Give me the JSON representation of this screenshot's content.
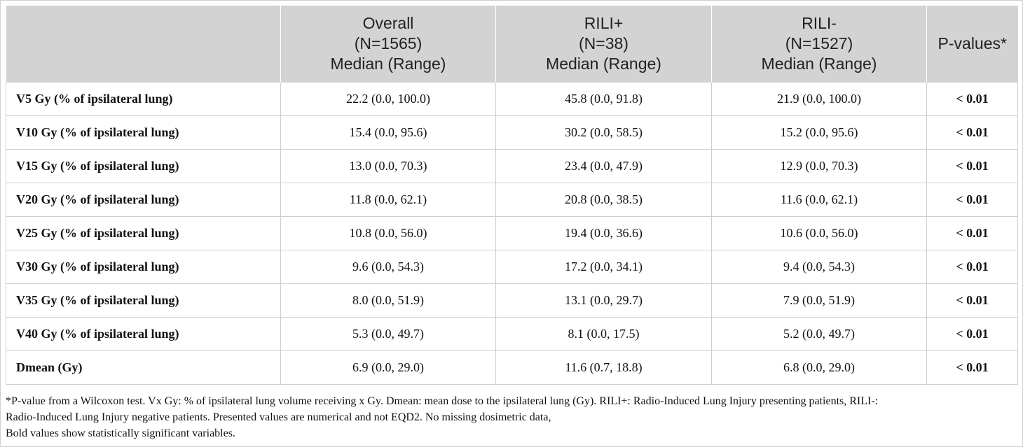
{
  "table": {
    "header": [
      [
        "Overall",
        "(N=1565)",
        "Median (Range)"
      ],
      [
        "RILI+",
        "(N=38)",
        "Median (Range)"
      ],
      [
        "RILI-",
        "(N=1527)",
        "Median (Range)"
      ],
      [
        "P-values*"
      ]
    ],
    "rows": [
      [
        "V5 Gy (% of ipsilateral lung)",
        "22.2 (0.0, 100.0)",
        "45.8 (0.0, 91.8)",
        "21.9 (0.0, 100.0)",
        "< 0.01"
      ],
      [
        "V10 Gy (% of ipsilateral lung)",
        "15.4 (0.0, 95.6)",
        "30.2 (0.0, 58.5)",
        "15.2 (0.0, 95.6)",
        "< 0.01"
      ],
      [
        "V15 Gy (% of ipsilateral lung)",
        "13.0 (0.0, 70.3)",
        "23.4 (0.0, 47.9)",
        "12.9 (0.0, 70.3)",
        "< 0.01"
      ],
      [
        "V20 Gy (% of ipsilateral lung)",
        "11.8 (0.0, 62.1)",
        "20.8 (0.0, 38.5)",
        "11.6 (0.0, 62.1)",
        "< 0.01"
      ],
      [
        "V25 Gy (% of ipsilateral lung)",
        "10.8 (0.0, 56.0)",
        "19.4 (0.0, 36.6)",
        "10.6 (0.0, 56.0)",
        "< 0.01"
      ],
      [
        "V30 Gy (% of ipsilateral lung)",
        "9.6 (0.0, 54.3)",
        "17.2 (0.0, 34.1)",
        "9.4 (0.0, 54.3)",
        "< 0.01"
      ],
      [
        "V35 Gy (% of ipsilateral lung)",
        "8.0 (0.0, 51.9)",
        "13.1 (0.0, 29.7)",
        "7.9 (0.0, 51.9)",
        "< 0.01"
      ],
      [
        "V40 Gy (% of ipsilateral lung)",
        "5.3 (0.0, 49.7)",
        "8.1 (0.0, 17.5)",
        "5.2 (0.0, 49.7)",
        "< 0.01"
      ],
      [
        "Dmean (Gy)",
        "6.9 (0.0, 29.0)",
        "11.6 (0.7, 18.8)",
        "6.8 (0.0, 29.0)",
        "< 0.01"
      ]
    ],
    "footnote": [
      "*P-value from a Wilcoxon test. Vx Gy: % of ipsilateral lung volume receiving x Gy. Dmean: mean dose to the ipsilateral lung (Gy). RILI+: Radio-Induced Lung Injury presenting patients, RILI-:",
      "Radio-Induced Lung Injury negative patients. Presented values are numerical and not EQD2. No missing dosimetric data,",
      "Bold values show statistically significant variables."
    ]
  }
}
